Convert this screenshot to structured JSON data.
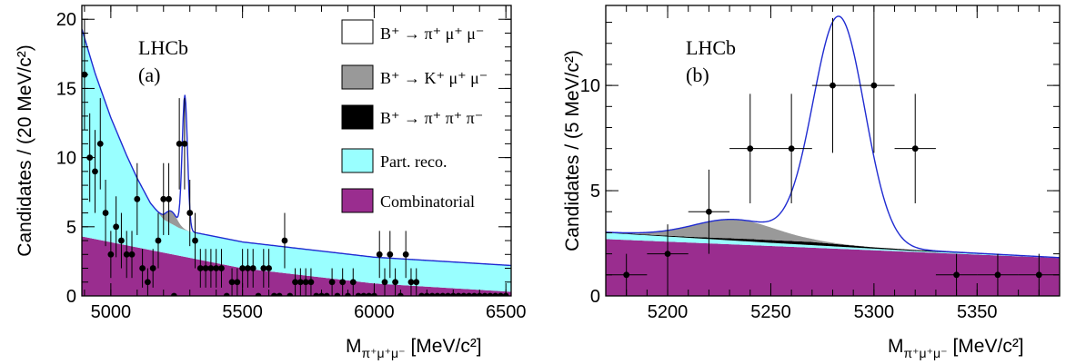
{
  "colors": {
    "signal_fill": "#ffffff",
    "kmumu_fill": "#999999",
    "pipipi_fill": "#000000",
    "partreco_fill": "#99ffff",
    "combinatorial_fill": "#9a2d8f",
    "total_fit_line": "#1f2bd1",
    "data_points": "#000000"
  },
  "chart_data": [
    {
      "type": "scatter",
      "panel_label": "(a)",
      "experiment_label": "LHCb",
      "xlabel": "M",
      "xlabel_subscript": "π⁺μ⁺μ⁻",
      "xlabel_unit": "[MeV/c²]",
      "ylabel": "Candidates / (20 MeV/c²)",
      "xlim": [
        4890,
        6520
      ],
      "ylim": [
        0,
        21
      ],
      "xticks": [
        5000,
        5500,
        6000,
        6500
      ],
      "yticks": [
        0,
        5,
        10,
        15,
        20
      ],
      "legend": {
        "placement": "top-right",
        "entries": [
          {
            "label": "B⁺ → π⁺ μ⁺ μ⁻",
            "color_key": "signal_fill"
          },
          {
            "label": "B⁺ → K⁺ μ⁺ μ⁻",
            "color_key": "kmumu_fill"
          },
          {
            "label": "B⁺ → π⁺ π⁺ π⁻",
            "color_key": "pipipi_fill"
          },
          {
            "label": "Part. reco.",
            "color_key": "partreco_fill"
          },
          {
            "label": "Combinatorial",
            "color_key": "combinatorial_fill"
          }
        ]
      },
      "data_points": {
        "x": [
          4900,
          4920,
          4940,
          4960,
          4980,
          5000,
          5020,
          5040,
          5060,
          5080,
          5100,
          5120,
          5140,
          5160,
          5180,
          5200,
          5220,
          5240,
          5260,
          5280,
          5300,
          5320,
          5340,
          5360,
          5380,
          5400,
          5420,
          5440,
          5460,
          5480,
          5500,
          5520,
          5540,
          5560,
          5580,
          5600,
          5620,
          5640,
          5660,
          5680,
          5700,
          5720,
          5740,
          5760,
          5780,
          5800,
          5820,
          5840,
          5860,
          5880,
          5900,
          5920,
          5940,
          5960,
          5980,
          6000,
          6020,
          6040,
          6060,
          6080,
          6100,
          6120,
          6140,
          6160,
          6180,
          6200,
          6220,
          6240,
          6260,
          6280,
          6300,
          6320,
          6340,
          6360,
          6380,
          6400,
          6420,
          6440,
          6460,
          6480,
          6500
        ],
        "y": [
          16,
          10,
          9,
          11,
          6,
          3,
          5,
          4,
          3,
          3,
          7,
          2,
          1,
          2,
          4,
          7,
          7,
          0,
          11,
          11,
          6,
          4,
          2,
          2,
          2,
          2,
          2,
          0,
          1,
          1,
          2,
          2,
          2,
          0,
          2,
          2,
          0,
          0,
          4,
          0,
          1,
          1,
          1,
          1,
          0,
          0,
          0,
          1,
          0,
          1,
          0,
          1,
          0,
          0,
          0,
          0,
          3,
          1,
          3,
          1,
          0,
          3,
          1,
          1,
          0,
          0,
          0,
          0,
          0,
          0,
          0,
          0,
          0,
          0,
          0,
          0,
          0,
          0,
          0,
          0,
          0
        ],
        "yerr": [
          4,
          3.2,
          3,
          3.3,
          2.4,
          1.7,
          2.2,
          2,
          1.7,
          1.7,
          2.6,
          1.4,
          1,
          1.4,
          2,
          2.6,
          2.6,
          0,
          3.3,
          3.3,
          2.4,
          2,
          1.4,
          1.4,
          1.4,
          1.4,
          1.4,
          0,
          1,
          1,
          1.4,
          1.4,
          1.4,
          0,
          1.4,
          1.4,
          0,
          0,
          2,
          0,
          1,
          1,
          1,
          1,
          0,
          0,
          0,
          1,
          0,
          1,
          0,
          1,
          0,
          0,
          0,
          0,
          1.7,
          1,
          1.7,
          1,
          0,
          1.7,
          1,
          1,
          0,
          0,
          0,
          0,
          0,
          0,
          0,
          0,
          0,
          0,
          0,
          0,
          0,
          0,
          0,
          0,
          0
        ],
        "xerr": 10
      },
      "components": {
        "combinatorial": {
          "x": [
            4890,
            5500,
            6000,
            6520
          ],
          "y": [
            4.3,
            2.0,
            0.9,
            0.3
          ]
        },
        "partreco": {
          "x": [
            4890,
            4940,
            5000,
            5060,
            5100,
            5150,
            5200,
            5260,
            5300
          ],
          "y": [
            15.0,
            12.0,
            9.0,
            6.5,
            5.0,
            3.4,
            2.4,
            2.0,
            1.9
          ]
        },
        "kmumu": {
          "mean": 5230,
          "sigma": 22,
          "amplitude": 0.9
        },
        "pipipi": {
          "mean": 5200,
          "sigma": 30,
          "amplitude": 0.0
        },
        "signal": {
          "mean": 5281,
          "sigma": 10,
          "amplitude": 9.7
        }
      }
    },
    {
      "type": "scatter",
      "panel_label": "(b)",
      "experiment_label": "LHCb",
      "xlabel": "M",
      "xlabel_subscript": "π⁺μ⁺μ⁻",
      "xlabel_unit": "[MeV/c²]",
      "ylabel": "Candidates / (5 MeV/c²)",
      "xlim": [
        5170,
        5390
      ],
      "ylim": [
        0,
        13.8
      ],
      "xticks": [
        5200,
        5250,
        5300,
        5350
      ],
      "yticks": [
        0,
        5,
        10
      ],
      "data_points": {
        "x": [
          5180,
          5200,
          5220,
          5240,
          5260,
          5280,
          5300,
          5320,
          5340,
          5360,
          5380
        ],
        "y": [
          1,
          2,
          4,
          7,
          7,
          10,
          10,
          7,
          1,
          1,
          1
        ],
        "yerr": [
          1,
          1.4,
          2,
          2.6,
          2.6,
          3.2,
          3.2,
          2.6,
          1,
          1,
          1
        ],
        "xerr": 10
      },
      "components": {
        "combinatorial": {
          "x": [
            5170,
            5390
          ],
          "y": [
            2.7,
            1.8
          ]
        },
        "partreco": {
          "x": [
            5170,
            5250,
            5320,
            5390
          ],
          "y": [
            0.3,
            0.15,
            0.05,
            0.02
          ]
        },
        "kmumu": {
          "mean": 5232,
          "sigma": 20,
          "amplitude": 0.9
        },
        "pipipi": {
          "x": [
            5170,
            5210,
            5240,
            5270,
            5300,
            5390
          ],
          "y": [
            0.02,
            0.05,
            0.12,
            0.15,
            0.06,
            0.0
          ]
        },
        "signal": {
          "mean": 5283,
          "sigma": 12.5,
          "amplitude": 10.8
        }
      }
    }
  ]
}
